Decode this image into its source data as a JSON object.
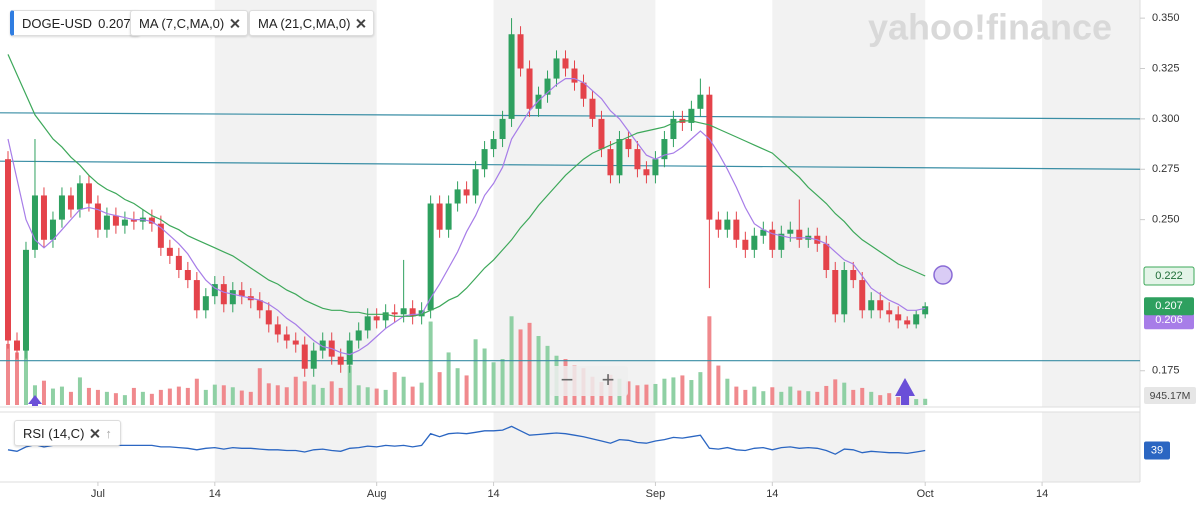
{
  "chart_data": {
    "type": "candlestick",
    "symbol": "DOGE-USD",
    "watermark": "yahoo!finance",
    "zoom_controls": [
      "−",
      "+"
    ],
    "up_color": "#2ea05f",
    "down_color": "#e4434a",
    "x": [
      "Jun 21",
      "Jun 22",
      "Jun 23",
      "Jun 24",
      "Jun 25",
      "Jun 26",
      "Jun 27",
      "Jun 28",
      "Jun 29",
      "Jun 30",
      "Jul 1",
      "Jul 2",
      "Jul 3",
      "Jul 4",
      "Jul 5",
      "Jul 6",
      "Jul 7",
      "Jul 8",
      "Jul 9",
      "Jul 10",
      "Jul 11",
      "Jul 12",
      "Jul 13",
      "Jul 14",
      "Jul 15",
      "Jul 16",
      "Jul 17",
      "Jul 18",
      "Jul 19",
      "Jul 20",
      "Jul 21",
      "Jul 22",
      "Jul 23",
      "Jul 24",
      "Jul 25",
      "Jul 26",
      "Jul 27",
      "Jul 28",
      "Jul 29",
      "Jul 30",
      "Jul 31",
      "Aug 1",
      "Aug 2",
      "Aug 3",
      "Aug 4",
      "Aug 5",
      "Aug 6",
      "Aug 7",
      "Aug 8",
      "Aug 9",
      "Aug 10",
      "Aug 11",
      "Aug 12",
      "Aug 13",
      "Aug 14",
      "Aug 15",
      "Aug 16",
      "Aug 17",
      "Aug 18",
      "Aug 19",
      "Aug 20",
      "Aug 21",
      "Aug 22",
      "Aug 23",
      "Aug 24",
      "Aug 25",
      "Aug 26",
      "Aug 27",
      "Aug 28",
      "Aug 29",
      "Aug 30",
      "Aug 31",
      "Sep 1",
      "Sep 2",
      "Sep 3",
      "Sep 4",
      "Sep 5",
      "Sep 6",
      "Sep 7",
      "Sep 8",
      "Sep 9",
      "Sep 10",
      "Sep 11",
      "Sep 12",
      "Sep 13",
      "Sep 14",
      "Sep 15",
      "Sep 16",
      "Sep 17",
      "Sep 18",
      "Sep 19",
      "Sep 20",
      "Sep 21",
      "Sep 22",
      "Sep 23",
      "Sep 24",
      "Sep 25",
      "Sep 26",
      "Sep 27",
      "Sep 28",
      "Sep 29",
      "Sep 30",
      "Oct 1"
    ],
    "open": [
      0.28,
      0.19,
      0.185,
      0.235,
      0.262,
      0.24,
      0.25,
      0.262,
      0.255,
      0.268,
      0.258,
      0.245,
      0.252,
      0.247,
      0.25,
      0.249,
      0.251,
      0.248,
      0.236,
      0.232,
      0.225,
      0.22,
      0.205,
      0.212,
      0.218,
      0.208,
      0.215,
      0.212,
      0.21,
      0.205,
      0.198,
      0.193,
      0.19,
      0.188,
      0.176,
      0.185,
      0.19,
      0.182,
      0.178,
      0.19,
      0.195,
      0.202,
      0.2,
      0.204,
      0.203,
      0.206,
      0.202,
      0.205,
      0.258,
      0.245,
      0.258,
      0.265,
      0.262,
      0.275,
      0.285,
      0.29,
      0.3,
      0.342,
      0.325,
      0.305,
      0.312,
      0.32,
      0.33,
      0.325,
      0.318,
      0.31,
      0.3,
      0.285,
      0.272,
      0.29,
      0.285,
      0.275,
      0.272,
      0.28,
      0.29,
      0.3,
      0.298,
      0.305,
      0.312,
      0.25,
      0.245,
      0.25,
      0.24,
      0.235,
      0.242,
      0.245,
      0.235,
      0.243,
      0.245,
      0.24,
      0.242,
      0.238,
      0.225,
      0.203,
      0.225,
      0.22,
      0.205,
      0.21,
      0.205,
      0.203,
      0.2,
      0.198,
      0.203
    ],
    "high": [
      0.284,
      0.194,
      0.239,
      0.29,
      0.266,
      0.254,
      0.266,
      0.266,
      0.272,
      0.272,
      0.262,
      0.256,
      0.256,
      0.254,
      0.254,
      0.255,
      0.255,
      0.252,
      0.24,
      0.236,
      0.229,
      0.224,
      0.216,
      0.222,
      0.222,
      0.219,
      0.219,
      0.216,
      0.214,
      0.209,
      0.202,
      0.197,
      0.194,
      0.192,
      0.189,
      0.194,
      0.194,
      0.186,
      0.194,
      0.199,
      0.206,
      0.206,
      0.208,
      0.208,
      0.23,
      0.21,
      0.209,
      0.262,
      0.262,
      0.262,
      0.269,
      0.269,
      0.279,
      0.289,
      0.294,
      0.304,
      0.35,
      0.346,
      0.329,
      0.316,
      0.324,
      0.334,
      0.334,
      0.329,
      0.322,
      0.314,
      0.304,
      0.289,
      0.294,
      0.294,
      0.289,
      0.279,
      0.284,
      0.294,
      0.304,
      0.304,
      0.309,
      0.32,
      0.316,
      0.254,
      0.254,
      0.254,
      0.244,
      0.246,
      0.249,
      0.249,
      0.247,
      0.249,
      0.26,
      0.246,
      0.246,
      0.242,
      0.229,
      0.229,
      0.229,
      0.224,
      0.214,
      0.214,
      0.209,
      0.207,
      0.202,
      0.205,
      0.209
    ],
    "low": [
      0.186,
      0.181,
      0.181,
      0.231,
      0.236,
      0.236,
      0.246,
      0.251,
      0.251,
      0.254,
      0.241,
      0.241,
      0.243,
      0.243,
      0.245,
      0.245,
      0.244,
      0.232,
      0.228,
      0.221,
      0.216,
      0.201,
      0.201,
      0.208,
      0.204,
      0.204,
      0.208,
      0.206,
      0.201,
      0.194,
      0.189,
      0.186,
      0.184,
      0.172,
      0.172,
      0.181,
      0.178,
      0.174,
      0.174,
      0.186,
      0.191,
      0.196,
      0.196,
      0.199,
      0.199,
      0.198,
      0.198,
      0.201,
      0.241,
      0.241,
      0.254,
      0.258,
      0.258,
      0.271,
      0.281,
      0.286,
      0.296,
      0.321,
      0.301,
      0.301,
      0.308,
      0.316,
      0.321,
      0.314,
      0.306,
      0.296,
      0.281,
      0.268,
      0.268,
      0.281,
      0.271,
      0.268,
      0.268,
      0.276,
      0.286,
      0.294,
      0.294,
      0.301,
      0.216,
      0.241,
      0.241,
      0.236,
      0.231,
      0.231,
      0.238,
      0.231,
      0.231,
      0.239,
      0.236,
      0.236,
      0.234,
      0.221,
      0.199,
      0.199,
      0.216,
      0.201,
      0.201,
      0.201,
      0.199,
      0.196,
      0.196,
      0.196,
      0.201
    ],
    "close": [
      0.19,
      0.185,
      0.235,
      0.262,
      0.24,
      0.25,
      0.262,
      0.255,
      0.268,
      0.258,
      0.245,
      0.252,
      0.247,
      0.25,
      0.249,
      0.251,
      0.248,
      0.236,
      0.232,
      0.225,
      0.22,
      0.205,
      0.212,
      0.218,
      0.208,
      0.215,
      0.212,
      0.21,
      0.205,
      0.198,
      0.193,
      0.19,
      0.188,
      0.176,
      0.185,
      0.19,
      0.182,
      0.178,
      0.19,
      0.195,
      0.202,
      0.2,
      0.204,
      0.203,
      0.206,
      0.202,
      0.205,
      0.258,
      0.245,
      0.258,
      0.265,
      0.262,
      0.275,
      0.285,
      0.29,
      0.3,
      0.342,
      0.325,
      0.305,
      0.312,
      0.32,
      0.33,
      0.325,
      0.318,
      0.31,
      0.3,
      0.285,
      0.272,
      0.29,
      0.285,
      0.275,
      0.272,
      0.28,
      0.29,
      0.3,
      0.298,
      0.305,
      0.312,
      0.25,
      0.245,
      0.25,
      0.24,
      0.235,
      0.242,
      0.245,
      0.235,
      0.243,
      0.245,
      0.24,
      0.242,
      0.238,
      0.225,
      0.203,
      0.225,
      0.22,
      0.205,
      0.21,
      0.205,
      0.203,
      0.2,
      0.198,
      0.203,
      0.207
    ],
    "xlim": [
      "Jun 21",
      "Oct 24"
    ],
    "xticks": [
      {
        "value": "Jul 1",
        "label": "Jul"
      },
      {
        "value": "Jul 14",
        "label": "14"
      },
      {
        "value": "Aug 1",
        "label": "Aug"
      },
      {
        "value": "Aug 14",
        "label": "14"
      },
      {
        "value": "Sep 1",
        "label": "Sep"
      },
      {
        "value": "Sep 14",
        "label": "14"
      },
      {
        "value": "Oct 1",
        "label": "Oct"
      },
      {
        "value": "Oct 14",
        "label": "14"
      }
    ],
    "ylim": [
      0.158,
      0.359
    ],
    "yticks": [
      {
        "value": 0.175,
        "label": "0.175"
      },
      {
        "value": 0.25,
        "label": "0.250"
      },
      {
        "value": 0.275,
        "label": "0.275"
      },
      {
        "value": 0.3,
        "label": "0.300"
      },
      {
        "value": 0.325,
        "label": "0.325"
      },
      {
        "value": 0.35,
        "label": "0.350"
      }
    ],
    "overlays": [
      {
        "name": "MA (7,C,MA,0)",
        "color": "#a77de8",
        "values": [
          0.29,
          0.27,
          0.25,
          0.24,
          0.236,
          0.24,
          0.245,
          0.25,
          0.255,
          0.256,
          0.255,
          0.253,
          0.252,
          0.251,
          0.25,
          0.25,
          0.249,
          0.246,
          0.242,
          0.238,
          0.233,
          0.226,
          0.22,
          0.216,
          0.214,
          0.213,
          0.212,
          0.211,
          0.21,
          0.208,
          0.205,
          0.201,
          0.198,
          0.194,
          0.19,
          0.187,
          0.186,
          0.184,
          0.183,
          0.185,
          0.188,
          0.192,
          0.196,
          0.199,
          0.202,
          0.203,
          0.203,
          0.211,
          0.218,
          0.226,
          0.234,
          0.244,
          0.252,
          0.262,
          0.268,
          0.276,
          0.29,
          0.297,
          0.304,
          0.309,
          0.313,
          0.317,
          0.32,
          0.32,
          0.318,
          0.314,
          0.31,
          0.304,
          0.3,
          0.294,
          0.288,
          0.282,
          0.28,
          0.282,
          0.283,
          0.286,
          0.29,
          0.294,
          0.29,
          0.283,
          0.275,
          0.266,
          0.256,
          0.248,
          0.245,
          0.243,
          0.242,
          0.241,
          0.241,
          0.241,
          0.24,
          0.238,
          0.234,
          0.23,
          0.228,
          0.222,
          0.216,
          0.213,
          0.21,
          0.208,
          0.205,
          0.205,
          0.206
        ]
      },
      {
        "name": "MA (21,C,MA,0)",
        "color": "#3da85a",
        "values": [
          0.332,
          0.322,
          0.312,
          0.302,
          0.296,
          0.29,
          0.286,
          0.281,
          0.277,
          0.272,
          0.268,
          0.265,
          0.263,
          0.26,
          0.258,
          0.255,
          0.252,
          0.25,
          0.247,
          0.245,
          0.242,
          0.24,
          0.238,
          0.236,
          0.234,
          0.232,
          0.229,
          0.226,
          0.223,
          0.22,
          0.218,
          0.215,
          0.213,
          0.21,
          0.208,
          0.206,
          0.205,
          0.205,
          0.204,
          0.204,
          0.203,
          0.203,
          0.203,
          0.202,
          0.202,
          0.202,
          0.203,
          0.205,
          0.207,
          0.21,
          0.212,
          0.216,
          0.221,
          0.226,
          0.23,
          0.235,
          0.24,
          0.246,
          0.251,
          0.257,
          0.262,
          0.267,
          0.272,
          0.276,
          0.28,
          0.283,
          0.285,
          0.287,
          0.289,
          0.291,
          0.293,
          0.294,
          0.295,
          0.296,
          0.298,
          0.299,
          0.299,
          0.298,
          0.297,
          0.295,
          0.293,
          0.291,
          0.289,
          0.287,
          0.285,
          0.283,
          0.279,
          0.275,
          0.271,
          0.266,
          0.262,
          0.258,
          0.253,
          0.249,
          0.244,
          0.24,
          0.237,
          0.234,
          0.231,
          0.228,
          0.226,
          0.224,
          0.222
        ]
      }
    ],
    "trend_lines": [
      {
        "color": "#3a8ea5",
        "values": [
          0.303,
          0.3
        ]
      },
      {
        "color": "#3a8ea5",
        "values": [
          0.279,
          0.275
        ]
      },
      {
        "color": "#3a8ea5",
        "values": [
          0.18,
          0.18
        ]
      }
    ],
    "volume": {
      "up_color": "#8fd0a4",
      "down_color": "#f0898d",
      "ylim": [
        0,
        14000
      ],
      "last_label": "945.17M",
      "values": [
        9300,
        8000,
        9500,
        3000,
        3700,
        2500,
        2800,
        2000,
        4200,
        2600,
        2300,
        2000,
        1800,
        1500,
        2600,
        2000,
        1700,
        2300,
        2500,
        2800,
        2600,
        4000,
        2300,
        3100,
        3000,
        2700,
        2200,
        2000,
        5600,
        3300,
        3000,
        2700,
        4300,
        3600,
        3100,
        2600,
        3600,
        2600,
        6000,
        3000,
        2700,
        2500,
        2300,
        5000,
        4300,
        2800,
        3400,
        12700,
        5000,
        8000,
        5600,
        4500,
        10000,
        8600,
        6500,
        7000,
        13500,
        11500,
        12500,
        10500,
        9000,
        7500,
        7000,
        6000,
        5600,
        4300,
        3500,
        4600,
        4000,
        3600,
        3000,
        3100,
        3200,
        4000,
        4200,
        4500,
        3800,
        5000,
        13500,
        6000,
        4000,
        2800,
        2300,
        2800,
        2100,
        2700,
        2000,
        2800,
        2200,
        2100,
        2000,
        2900,
        3900,
        3400,
        2300,
        2600,
        2000,
        1500,
        1800,
        1200,
        1100,
        900,
        945.17
      ]
    },
    "rsi": {
      "name": "RSI (14,C)",
      "color": "#2b66c2",
      "ylim": [
        0,
        100
      ],
      "values": [
        40,
        38,
        44,
        47,
        44,
        46,
        48,
        47,
        49,
        47,
        46,
        47,
        46,
        46,
        46,
        46,
        46,
        44,
        44,
        43,
        42,
        40,
        42,
        43,
        41,
        43,
        42,
        42,
        41,
        40,
        40,
        39,
        39,
        37,
        40,
        41,
        39,
        38,
        42,
        43,
        45,
        44,
        46,
        45,
        46,
        44,
        46,
        62,
        58,
        62,
        63,
        62,
        64,
        66,
        66,
        67,
        72,
        66,
        60,
        61,
        62,
        63,
        62,
        60,
        58,
        55,
        52,
        49,
        54,
        53,
        50,
        49,
        52,
        54,
        57,
        56,
        58,
        60,
        42,
        41,
        43,
        40,
        39,
        42,
        43,
        40,
        43,
        44,
        42,
        43,
        42,
        39,
        34,
        41,
        40,
        36,
        38,
        37,
        36,
        36,
        35,
        37,
        39
      ]
    }
  }
}
